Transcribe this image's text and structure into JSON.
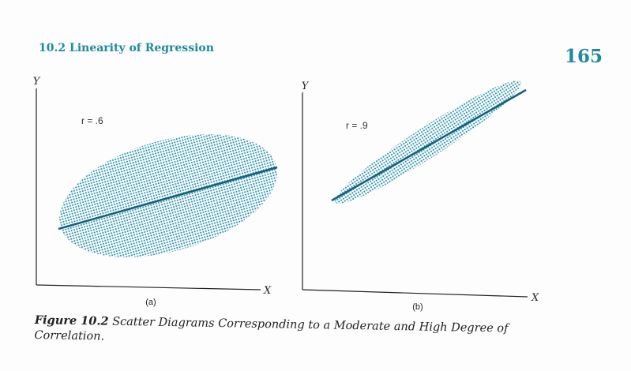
{
  "running_head": "10.2 Linearity of Regression",
  "page_number": "165",
  "figures": [
    {
      "panel_label": "(a)",
      "r_label": "r = .6",
      "x_axis": "X",
      "y_axis": "Y"
    },
    {
      "panel_label": "(b)",
      "r_label": "r = .9",
      "x_axis": "X",
      "y_axis": "Y"
    }
  ],
  "caption": {
    "label": "Figure 10.2",
    "text": "Scatter Diagrams Corresponding to a Moderate and High Degree of Correlation."
  },
  "colors": {
    "accent": "#1e8a9c",
    "line": "#15607a",
    "dots": "#2a8fa8"
  }
}
